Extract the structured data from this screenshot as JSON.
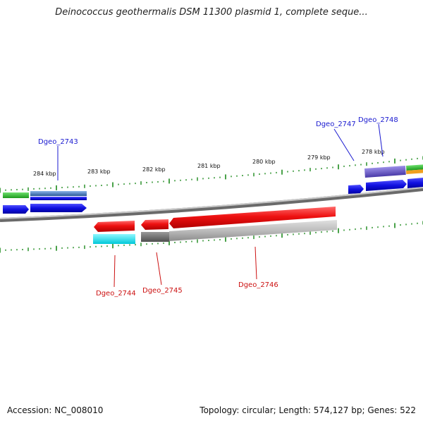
{
  "title": "Deinococcus geothermalis DSM 11300 plasmid 1, complete seque...",
  "footer": {
    "accession": "Accession: NC_008010",
    "summary": "Topology: circular; Length: 574,127 bp; Genes: 522"
  },
  "scale_labels": [
    "284 kbp",
    "283 kbp",
    "282 kbp",
    "281 kbp",
    "280 kbp",
    "279 kbp",
    "278 kbp"
  ],
  "gene_labels": {
    "dgeo_2743": "Dgeo_2743",
    "dgeo_2744": "Dgeo_2744",
    "dgeo_2745": "Dgeo_2745",
    "dgeo_2746": "Dgeo_2746",
    "dgeo_2747": "Dgeo_2747",
    "dgeo_2748": "Dgeo_2748"
  },
  "colors": {
    "forward_label": "#1a1ad0",
    "reverse_label": "#cc1111",
    "tick": "#1d8a1d",
    "backbone": "#8a8a8a",
    "gene_blue": "#1414e0",
    "gene_red": "#e81010",
    "gene_green": "#2ebd2e",
    "gene_cyan": "#18e8f0",
    "gene_grey": "#b8b8b8",
    "gene_dark_grey": "#6a6a6a",
    "gene_purple": "#6a5ac8",
    "gene_orange": "#f0a020",
    "gene_steel": "#4a7ab8"
  }
}
